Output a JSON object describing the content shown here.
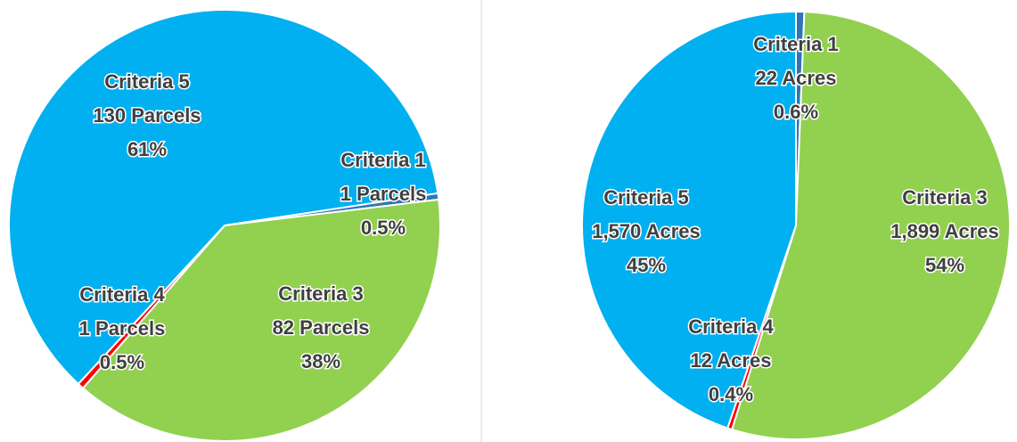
{
  "chart_data": [
    {
      "type": "pie",
      "categories": [
        "Criteria 1",
        "Criteria 3",
        "Criteria 4",
        "Criteria 5"
      ],
      "values": [
        1,
        82,
        1,
        130
      ],
      "value_labels": [
        "1 Parcels",
        "82 Parcels",
        "1 Parcels",
        "130 Parcels"
      ],
      "percent_labels": [
        "0.5%",
        "38%",
        "0.5%",
        "61%"
      ],
      "colors": [
        "#2e75b6",
        "#92d050",
        "#ff0000",
        "#00b0f0"
      ]
    },
    {
      "type": "pie",
      "categories": [
        "Criteria 1",
        "Criteria 3",
        "Criteria 4",
        "Criteria 5"
      ],
      "values": [
        22,
        1899,
        12,
        1570
      ],
      "value_labels": [
        "22 Acres",
        "1,899 Acres",
        "12 Acres",
        "1,570 Acres"
      ],
      "percent_labels": [
        "0.6%",
        "54%",
        "0.4%",
        "45%"
      ],
      "colors": [
        "#2e75b6",
        "#92d050",
        "#ff0000",
        "#00b0f0"
      ]
    }
  ]
}
